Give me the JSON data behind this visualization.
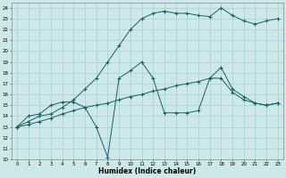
{
  "bg_color": "#cce8e8",
  "grid_color": "#a8d0d0",
  "line_color": "#1a6060",
  "xlabel": "Humidex (Indice chaleur)",
  "xlim": [
    -0.5,
    23.5
  ],
  "ylim": [
    10,
    24.5
  ],
  "xticks": [
    0,
    1,
    2,
    3,
    4,
    5,
    6,
    7,
    8,
    9,
    10,
    11,
    12,
    13,
    14,
    15,
    16,
    17,
    18,
    19,
    20,
    21,
    22,
    23
  ],
  "yticks": [
    10,
    11,
    12,
    13,
    14,
    15,
    16,
    17,
    18,
    19,
    20,
    21,
    22,
    23,
    24
  ],
  "line1_x": [
    0,
    1,
    2,
    3,
    4,
    5,
    6,
    7,
    8,
    9,
    10,
    11,
    12,
    13,
    14,
    15,
    16,
    17,
    18,
    19,
    20,
    21,
    22,
    23
  ],
  "line1_y": [
    13.0,
    13.5,
    14.0,
    14.2,
    14.8,
    15.5,
    16.5,
    17.5,
    19.0,
    20.5,
    22.0,
    23.0,
    23.5,
    23.7,
    23.5,
    23.5,
    23.3,
    23.2,
    24.0,
    23.3,
    22.8,
    22.5,
    22.8,
    23.0
  ],
  "line2_x": [
    0,
    1,
    2,
    3,
    4,
    5,
    6,
    7,
    8,
    9,
    10,
    11,
    12,
    13,
    14,
    15,
    16,
    17,
    18,
    19,
    20,
    21,
    22,
    23
  ],
  "line2_y": [
    13.0,
    14.0,
    14.2,
    15.0,
    15.3,
    15.3,
    14.8,
    13.0,
    10.2,
    17.5,
    18.2,
    19.0,
    17.5,
    14.3,
    14.3,
    14.3,
    14.5,
    17.5,
    18.5,
    16.5,
    15.8,
    15.2,
    15.0,
    15.2
  ],
  "line3_x": [
    0,
    1,
    2,
    3,
    4,
    5,
    6,
    7,
    8,
    9,
    10,
    11,
    12,
    13,
    14,
    15,
    16,
    17,
    18,
    19,
    20,
    21,
    22,
    23
  ],
  "line3_y": [
    13.0,
    13.2,
    13.5,
    13.8,
    14.2,
    14.5,
    14.8,
    15.0,
    15.2,
    15.5,
    15.8,
    16.0,
    16.3,
    16.5,
    16.8,
    17.0,
    17.2,
    17.5,
    17.5,
    16.2,
    15.5,
    15.2,
    15.0,
    15.2
  ]
}
